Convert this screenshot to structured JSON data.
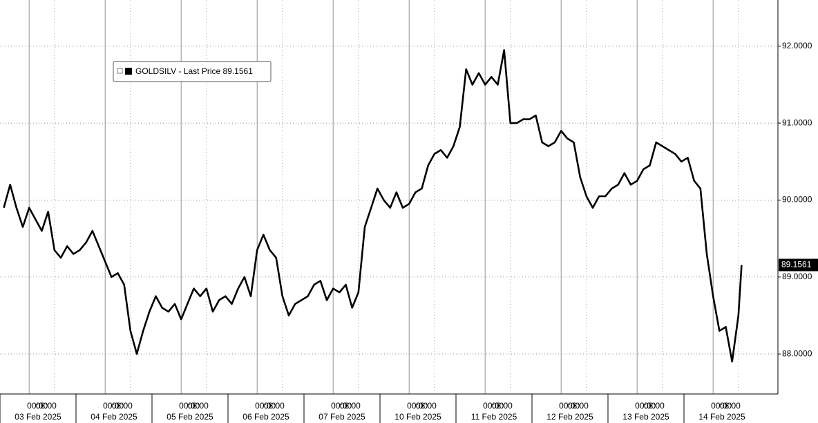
{
  "chart_data": {
    "type": "line",
    "days": [
      "03 Feb 2025",
      "04 Feb 2025",
      "05 Feb 2025",
      "06 Feb 2025",
      "07 Feb 2025",
      "10 Feb 2025",
      "11 Feb 2025",
      "12 Feb 2025",
      "13 Feb 2025",
      "14 Feb 2025"
    ],
    "tick_times": [
      "00:00",
      "08:00"
    ],
    "x": [
      "2025-02-02T16:00",
      "2025-02-02T18:00",
      "2025-02-02T20:00",
      "2025-02-02T22:00",
      "2025-02-03T00:00",
      "2025-02-03T02:00",
      "2025-02-03T04:00",
      "2025-02-03T06:00",
      "2025-02-03T08:00",
      "2025-02-03T10:00",
      "2025-02-03T12:00",
      "2025-02-03T14:00",
      "2025-02-03T16:00",
      "2025-02-03T18:00",
      "2025-02-03T20:00",
      "2025-02-03T22:00",
      "2025-02-04T00:00",
      "2025-02-04T02:00",
      "2025-02-04T04:00",
      "2025-02-04T06:00",
      "2025-02-04T08:00",
      "2025-02-04T10:00",
      "2025-02-04T12:00",
      "2025-02-04T14:00",
      "2025-02-04T16:00",
      "2025-02-04T18:00",
      "2025-02-04T20:00",
      "2025-02-04T22:00",
      "2025-02-05T00:00",
      "2025-02-05T02:00",
      "2025-02-05T04:00",
      "2025-02-05T06:00",
      "2025-02-05T08:00",
      "2025-02-05T10:00",
      "2025-02-05T12:00",
      "2025-02-05T14:00",
      "2025-02-05T16:00",
      "2025-02-05T18:00",
      "2025-02-05T20:00",
      "2025-02-05T22:00",
      "2025-02-06T00:00",
      "2025-02-06T02:00",
      "2025-02-06T04:00",
      "2025-02-06T06:00",
      "2025-02-06T08:00",
      "2025-02-06T10:00",
      "2025-02-06T12:00",
      "2025-02-06T14:00",
      "2025-02-06T16:00",
      "2025-02-06T18:00",
      "2025-02-06T20:00",
      "2025-02-06T22:00",
      "2025-02-07T00:00",
      "2025-02-07T02:00",
      "2025-02-07T04:00",
      "2025-02-07T06:00",
      "2025-02-07T08:00",
      "2025-02-07T10:00",
      "2025-02-07T12:00",
      "2025-02-07T14:00",
      "2025-02-09T16:00",
      "2025-02-09T18:00",
      "2025-02-09T20:00",
      "2025-02-09T22:00",
      "2025-02-10T00:00",
      "2025-02-10T02:00",
      "2025-02-10T04:00",
      "2025-02-10T06:00",
      "2025-02-10T08:00",
      "2025-02-10T10:00",
      "2025-02-10T12:00",
      "2025-02-10T14:00",
      "2025-02-10T16:00",
      "2025-02-10T18:00",
      "2025-02-10T20:00",
      "2025-02-10T22:00",
      "2025-02-11T00:00",
      "2025-02-11T02:00",
      "2025-02-11T04:00",
      "2025-02-11T06:00",
      "2025-02-11T08:00",
      "2025-02-11T10:00",
      "2025-02-11T12:00",
      "2025-02-11T14:00",
      "2025-02-11T16:00",
      "2025-02-11T18:00",
      "2025-02-11T20:00",
      "2025-02-11T22:00",
      "2025-02-12T00:00",
      "2025-02-12T02:00",
      "2025-02-12T04:00",
      "2025-02-12T06:00",
      "2025-02-12T08:00",
      "2025-02-12T10:00",
      "2025-02-12T12:00",
      "2025-02-12T14:00",
      "2025-02-12T16:00",
      "2025-02-12T18:00",
      "2025-02-12T20:00",
      "2025-02-12T22:00",
      "2025-02-13T00:00",
      "2025-02-13T02:00",
      "2025-02-13T04:00",
      "2025-02-13T06:00",
      "2025-02-13T08:00",
      "2025-02-13T10:00",
      "2025-02-13T12:00",
      "2025-02-13T14:00",
      "2025-02-13T16:00",
      "2025-02-13T18:00",
      "2025-02-13T20:00",
      "2025-02-13T22:00",
      "2025-02-14T00:00",
      "2025-02-14T02:00",
      "2025-02-14T04:00",
      "2025-02-14T06:00",
      "2025-02-14T08:00",
      "2025-02-14T09:00"
    ],
    "series": [
      {
        "name": "GOLDSILV - Last Price",
        "color": "#000000",
        "values": [
          89.9,
          90.2,
          89.9,
          89.65,
          89.9,
          89.75,
          89.6,
          89.85,
          89.35,
          89.25,
          89.4,
          89.3,
          89.35,
          89.45,
          89.6,
          89.4,
          89.2,
          89.0,
          89.05,
          88.9,
          88.3,
          88.0,
          88.3,
          88.55,
          88.75,
          88.6,
          88.55,
          88.65,
          88.45,
          88.65,
          88.85,
          88.75,
          88.85,
          88.55,
          88.7,
          88.75,
          88.65,
          88.85,
          89.0,
          88.75,
          89.35,
          89.55,
          89.35,
          89.25,
          88.75,
          88.5,
          88.65,
          88.7,
          88.75,
          88.9,
          88.95,
          88.7,
          88.85,
          88.8,
          88.9,
          88.6,
          88.8,
          89.65,
          89.9,
          90.15,
          90.0,
          89.9,
          90.1,
          89.9,
          89.95,
          90.1,
          90.15,
          90.45,
          90.6,
          90.65,
          90.55,
          90.7,
          90.95,
          91.7,
          91.5,
          91.65,
          91.5,
          91.6,
          91.5,
          91.95,
          91.0,
          91.0,
          91.05,
          91.05,
          91.1,
          90.75,
          90.7,
          90.75,
          90.9,
          90.8,
          90.75,
          90.3,
          90.05,
          89.9,
          90.05,
          90.05,
          90.15,
          90.2,
          90.35,
          90.2,
          90.25,
          90.4,
          90.45,
          90.75,
          90.7,
          90.65,
          90.6,
          90.5,
          90.55,
          90.25,
          90.15,
          89.3,
          88.75,
          88.3,
          88.35,
          87.9,
          88.5,
          89.1561
        ]
      }
    ],
    "ylim": [
      87.48,
      92.6
    ],
    "yticks": [
      {
        "value": 88,
        "label": "88.0000"
      },
      {
        "value": 89,
        "label": "89.0000"
      },
      {
        "value": 90,
        "label": "90.0000"
      },
      {
        "value": 91,
        "label": "91.0000"
      },
      {
        "value": 92,
        "label": "92.0000"
      }
    ],
    "grid": true
  }
}
